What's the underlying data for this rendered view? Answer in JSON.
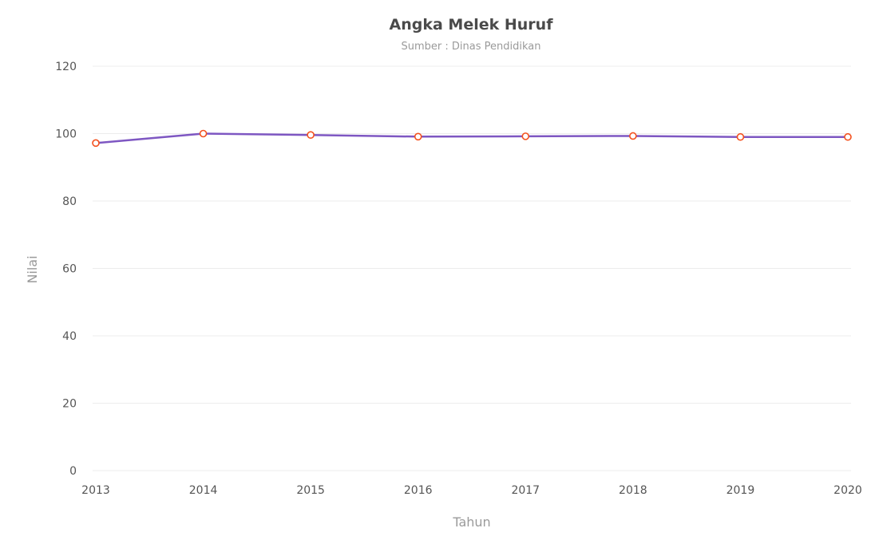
{
  "chart_data": {
    "type": "line",
    "title": "Angka Melek Huruf",
    "subtitle": "Sumber : Dinas Pendidikan",
    "xlabel": "Tahun",
    "ylabel": "Nilai",
    "x": [
      "2013",
      "2014",
      "2015",
      "2016",
      "2017",
      "2018",
      "2019",
      "2020"
    ],
    "series": [
      {
        "values": [
          97.2,
          100.0,
          99.6,
          99.1,
          99.2,
          99.3,
          99.0,
          99.0
        ]
      }
    ],
    "ylim": [
      0,
      120
    ],
    "yticks": [
      0,
      20,
      40,
      60,
      80,
      100,
      120
    ],
    "grid": true,
    "legend": "none",
    "colors": {
      "line": "#7e57c2",
      "marker_stroke": "#f4511e",
      "grid": "#ececec"
    }
  }
}
